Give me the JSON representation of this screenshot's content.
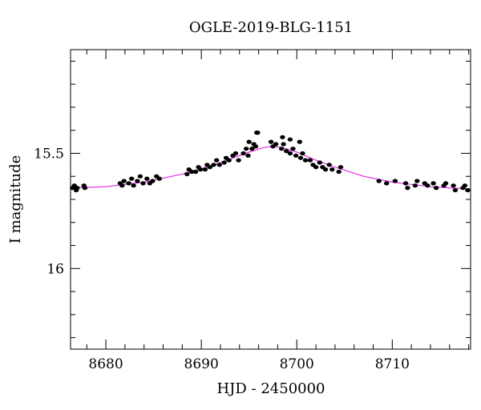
{
  "chart_data": {
    "type": "scatter",
    "title": "OGLE-2019-BLG-1151",
    "xlabel": "HJD - 2450000",
    "ylabel": "I magnitude",
    "xlim": [
      8676.3,
      8718.2
    ],
    "ylim": [
      16.35,
      15.05
    ],
    "y_inverted": true,
    "x_ticks": [
      8680,
      8690,
      8700,
      8710
    ],
    "x_tick_labels": [
      "8680",
      "8690",
      "8700",
      "8710"
    ],
    "x_minor_step": 2,
    "y_ticks": [
      15.5,
      16
    ],
    "y_tick_labels": [
      "15.5",
      "16"
    ],
    "y_minor_step": 0.1,
    "grid": false,
    "legend": "none",
    "colors": {
      "points": "#000000",
      "model": "#e62ae6",
      "axes": "#000000"
    },
    "series": [
      {
        "kind": "points",
        "x": [
          8676.5,
          8676.7,
          8676.9,
          8677.0,
          8677.7,
          8677.8,
          8681.5,
          8681.7,
          8681.9,
          8682.4,
          8682.7,
          8682.9,
          8683.3,
          8683.6,
          8683.9,
          8684.3,
          8684.6,
          8684.9,
          8685.3,
          8685.6,
          8688.5,
          8688.7,
          8689.0,
          8689.4,
          8689.7,
          8689.9,
          8690.4,
          8690.6,
          8690.9,
          8691.3,
          8691.6,
          8691.9,
          8692.4,
          8692.6,
          8692.9,
          8693.3,
          8693.6,
          8693.9,
          8694.4,
          8694.7,
          8694.9,
          8695.3,
          8695.5,
          8695.7,
          8697.3,
          8697.5,
          8697.8,
          8698.4,
          8698.6,
          8698.9,
          8699.3,
          8699.6,
          8699.9,
          8700.4,
          8700.6,
          8700.9,
          8701.4,
          8701.7,
          8702.0,
          8702.4,
          8702.7,
          8703.0,
          8703.4,
          8703.7,
          8704.4,
          8704.6,
          8708.6,
          8709.4,
          8710.3,
          8711.4,
          8711.6,
          8712.4,
          8712.6,
          8713.4,
          8713.7,
          8714.3,
          8714.6,
          8715.4,
          8715.6,
          8716.4,
          8716.6,
          8717.4,
          8717.6,
          8717.9
        ],
        "y": [
          15.65,
          15.64,
          15.66,
          15.65,
          15.64,
          15.65,
          15.63,
          15.64,
          15.62,
          15.63,
          15.61,
          15.64,
          15.62,
          15.6,
          15.63,
          15.61,
          15.63,
          15.62,
          15.6,
          15.61,
          15.59,
          15.57,
          15.58,
          15.58,
          15.56,
          15.57,
          15.57,
          15.55,
          15.56,
          15.55,
          15.53,
          15.55,
          15.54,
          15.52,
          15.53,
          15.51,
          15.5,
          15.53,
          15.5,
          15.48,
          15.51,
          15.48,
          15.46,
          15.47,
          15.45,
          15.47,
          15.46,
          15.48,
          15.46,
          15.49,
          15.5,
          15.48,
          15.51,
          15.52,
          15.5,
          15.53,
          15.53,
          15.55,
          15.56,
          15.54,
          15.56,
          15.57,
          15.55,
          15.57,
          15.58,
          15.56,
          15.62,
          15.63,
          15.62,
          15.63,
          15.65,
          15.64,
          15.62,
          15.63,
          15.64,
          15.63,
          15.65,
          15.64,
          15.63,
          15.64,
          15.66,
          15.65,
          15.64,
          15.66
        ]
      },
      {
        "kind": "outliers",
        "x": [
          8695.0,
          8695.8,
          8695.9,
          8698.5,
          8699.3,
          8700.3
        ],
        "y": [
          15.45,
          15.41,
          15.41,
          15.43,
          15.44,
          15.45
        ]
      },
      {
        "kind": "model",
        "x": [
          8676.3,
          8680,
          8684,
          8688,
          8691,
          8693,
          8695,
          8696.5,
          8697.5,
          8698.5,
          8700,
          8702,
          8704,
          8707,
          8710,
          8714,
          8718.2
        ],
        "y": [
          15.65,
          15.645,
          15.625,
          15.59,
          15.555,
          15.525,
          15.495,
          15.475,
          15.47,
          15.475,
          15.495,
          15.53,
          15.56,
          15.6,
          15.625,
          15.645,
          15.655
        ]
      }
    ]
  }
}
